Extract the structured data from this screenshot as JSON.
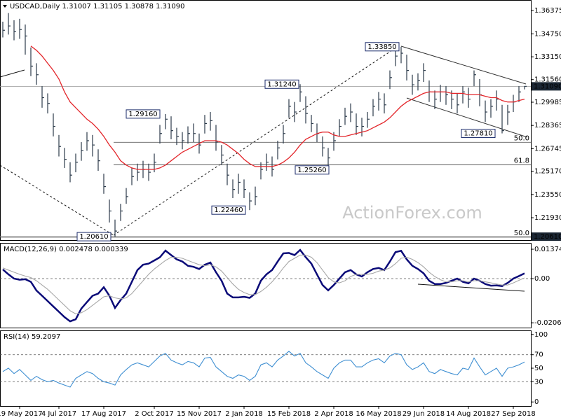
{
  "chart_data": [
    {
      "type": "ohlc",
      "title": "USDCAD,Daily  1.31007 1.31105 1.30878 1.31090",
      "watermark": "ActionForex.com",
      "color": "#2b3a4a",
      "categories": [
        null,
        null,
        null,
        "19 May 2017",
        null,
        null,
        null,
        null,
        null,
        null,
        "4 Jul 2017",
        null,
        null,
        null,
        null,
        null,
        null,
        null,
        "17 Aug 2017",
        null,
        null,
        null,
        null,
        null,
        null,
        null,
        null,
        "2 Oct 2017",
        null,
        null,
        null,
        null,
        null,
        null,
        null,
        "15 Nov 2017",
        null,
        null,
        null,
        null,
        null,
        null,
        null,
        "2 Jan 2018",
        null,
        null,
        null,
        null,
        null,
        null,
        null,
        "15 Feb 2018",
        null,
        null,
        null,
        null,
        null,
        null,
        null,
        "2 Apr 2018",
        null,
        null,
        null,
        null,
        null,
        null,
        null,
        "16 May 2018",
        null,
        null,
        null,
        null,
        null,
        null,
        null,
        "29 Jun 2018",
        null,
        null,
        null,
        null,
        null,
        null,
        null,
        "14 Aug 2018",
        null,
        null,
        null,
        null,
        null,
        null,
        null,
        "27 Sep 2018",
        null,
        null
      ],
      "high": [
        1.356,
        1.362,
        1.357,
        1.358,
        1.354,
        1.338,
        1.327,
        1.311,
        1.306,
        1.292,
        1.277,
        1.268,
        1.258,
        1.264,
        1.272,
        1.279,
        1.277,
        1.267,
        1.25,
        1.232,
        1.218,
        1.229,
        1.24,
        1.254,
        1.257,
        1.259,
        1.257,
        1.264,
        1.284,
        1.2916,
        1.29,
        1.282,
        1.279,
        1.283,
        1.285,
        1.278,
        1.291,
        1.293,
        1.284,
        1.27,
        1.257,
        1.246,
        1.25,
        1.246,
        1.237,
        1.241,
        1.258,
        1.264,
        1.262,
        1.273,
        1.284,
        1.302,
        1.3,
        1.3124,
        1.304,
        1.291,
        1.285,
        1.276,
        1.268,
        1.279,
        1.288,
        1.296,
        1.299,
        1.292,
        1.289,
        1.293,
        1.302,
        1.307,
        1.306,
        1.322,
        1.337,
        1.3385,
        1.333,
        1.319,
        1.32,
        1.327,
        1.315,
        1.308,
        1.312,
        1.311,
        1.308,
        1.306,
        1.311,
        1.31,
        1.322,
        1.316,
        1.301,
        1.302,
        1.308,
        1.298,
        1.298,
        1.305,
        1.311,
        1.31105
      ],
      "low": [
        1.345,
        1.347,
        1.343,
        1.344,
        1.333,
        1.318,
        1.312,
        1.296,
        1.292,
        1.276,
        1.262,
        1.254,
        1.244,
        1.251,
        1.259,
        1.266,
        1.262,
        1.252,
        1.236,
        1.216,
        1.2061,
        1.217,
        1.229,
        1.242,
        1.245,
        1.247,
        1.245,
        1.251,
        1.271,
        1.281,
        1.274,
        1.27,
        1.267,
        1.271,
        1.272,
        1.264,
        1.278,
        1.28,
        1.266,
        1.256,
        1.242,
        1.233,
        1.236,
        1.233,
        1.2246,
        1.228,
        1.246,
        1.252,
        1.248,
        1.26,
        1.271,
        1.289,
        1.286,
        1.3,
        1.285,
        1.279,
        1.272,
        1.262,
        1.2526,
        1.266,
        1.276,
        1.284,
        1.286,
        1.277,
        1.276,
        1.282,
        1.29,
        1.294,
        1.292,
        1.309,
        1.325,
        1.327,
        1.315,
        1.305,
        1.308,
        1.314,
        1.3,
        1.295,
        1.3,
        1.298,
        1.295,
        1.292,
        1.299,
        1.296,
        1.311,
        1.297,
        1.286,
        1.289,
        1.294,
        1.2781,
        1.284,
        1.293,
        1.3,
        1.30878
      ],
      "close": [
        1.35,
        1.353,
        1.349,
        1.3505,
        1.346,
        1.325,
        1.319,
        1.303,
        1.299,
        1.283,
        1.269,
        1.26,
        1.249,
        1.258,
        1.266,
        1.273,
        1.27,
        1.259,
        1.241,
        1.224,
        1.21,
        1.224,
        1.234,
        1.248,
        1.251,
        1.253,
        1.251,
        1.258,
        1.278,
        1.288,
        1.28,
        1.276,
        1.273,
        1.278,
        1.278,
        1.27,
        1.285,
        1.287,
        1.272,
        1.263,
        1.249,
        1.239,
        1.244,
        1.239,
        1.231,
        1.234,
        1.253,
        1.258,
        1.253,
        1.268,
        1.278,
        1.297,
        1.293,
        1.307,
        1.292,
        1.285,
        1.278,
        1.268,
        1.261,
        1.273,
        1.283,
        1.29,
        1.293,
        1.283,
        1.283,
        1.288,
        1.297,
        1.302,
        1.298,
        1.317,
        1.332,
        1.334,
        1.322,
        1.312,
        1.315,
        1.322,
        1.307,
        1.302,
        1.307,
        1.305,
        1.302,
        1.298,
        1.307,
        1.302,
        1.319,
        1.305,
        1.293,
        1.297,
        1.302,
        1.28,
        1.293,
        1.3,
        1.307,
        1.3109
      ],
      "ma": {
        "color": "#e3262b",
        "values": [
          null,
          null,
          null,
          null,
          null,
          1.339,
          1.336,
          1.332,
          1.327,
          1.322,
          1.316,
          1.307,
          1.3,
          1.296,
          1.292,
          1.288,
          1.285,
          1.281,
          1.276,
          1.27,
          1.265,
          1.259,
          1.256,
          1.254,
          1.253,
          1.253,
          1.253,
          1.253,
          1.254,
          1.256,
          1.259,
          1.262,
          1.265,
          1.267,
          1.269,
          1.271,
          1.273,
          1.273,
          1.273,
          1.272,
          1.27,
          1.267,
          1.264,
          1.26,
          1.257,
          1.255,
          1.255,
          1.255,
          1.255,
          1.256,
          1.258,
          1.261,
          1.265,
          1.27,
          1.274,
          1.276,
          1.278,
          1.279,
          1.279,
          1.277,
          1.276,
          1.276,
          1.277,
          1.278,
          1.279,
          1.28,
          1.282,
          1.284,
          1.286,
          1.289,
          1.293,
          1.297,
          1.3,
          1.302,
          1.304,
          1.306,
          1.307,
          1.307,
          1.307,
          1.307,
          1.306,
          1.306,
          1.306,
          1.305,
          1.305,
          1.305,
          1.304,
          1.303,
          1.303,
          1.301,
          1.3,
          1.3,
          1.301,
          1.302
        ]
      },
      "ylim": [
        1.2037,
        1.3711
      ],
      "yticks": [
        1.36375,
        {
          "value": 1.3475,
          "label": "1.34750"
        },
        {
          "value": 1.3315,
          "label": "1.33150"
        },
        {
          "value": 1.3156,
          "label": "1.31560"
        },
        1.29985,
        1.28365,
        1.26745,
        {
          "value": 1.2517,
          "label": "1.25170"
        },
        {
          "value": 1.2355,
          "label": "1.23550"
        },
        {
          "value": 1.2193,
          "label": "1.21930"
        }
      ],
      "annotations": [
        {
          "value": 1.3385,
          "label": "1.33850"
        },
        {
          "value": 1.3124,
          "label": "1.31240"
        },
        {
          "value": 1.2916,
          "label": "1.29160"
        },
        {
          "value": 1.2781,
          "label": "1.27810"
        },
        {
          "value": 1.2526,
          "label": "1.25260"
        },
        {
          "value": 1.2246,
          "label": "1.22460"
        },
        {
          "value": 1.2061,
          "label": "1.20610"
        }
      ],
      "levels": [
        {
          "value": 1.2719,
          "label": "50.0"
        },
        {
          "value": 1.2562,
          "label": "61.8"
        },
        {
          "value": 1.2057,
          "label": "50.0"
        }
      ],
      "price_tags": [
        {
          "value": 1.3109,
          "label": "1.31090"
        },
        {
          "value": 1.2061,
          "label": "1.20610"
        }
      ]
    },
    {
      "type": "line",
      "title": "MACD(12,26,9) 0.002478 0.000339",
      "series": [
        {
          "color": "#0a0a78",
          "values": [
            0.0043,
            0.002,
            0,
            -0.0005,
            -0.0003,
            -0.0015,
            -0.0056,
            -0.008,
            -0.0105,
            -0.013,
            -0.0155,
            -0.018,
            -0.02,
            -0.019,
            -0.014,
            -0.011,
            -0.008,
            -0.007,
            -0.004,
            -0.008,
            -0.0137,
            -0.01,
            -0.007,
            -0.0015,
            0.004,
            0.0065,
            0.007,
            0.0085,
            0.01,
            0.0131,
            0.011,
            0.009,
            0.008,
            0.006,
            0.0055,
            0.0045,
            0.0065,
            0.0075,
            0.003,
            -0.001,
            -0.007,
            -0.0088,
            -0.0088,
            -0.0085,
            -0.009,
            -0.007,
            -0.001,
            0.002,
            0.004,
            0.008,
            0.0118,
            0.012,
            0.011,
            0.0134,
            0.01,
            0.007,
            0.002,
            -0.003,
            -0.0055,
            -0.003,
            0,
            0.003,
            0.004,
            0.002,
            0.001,
            0.003,
            0.0045,
            0.005,
            0.004,
            0.008,
            0.0124,
            0.013,
            0.009,
            0.006,
            0.0045,
            0.0025,
            -0.001,
            -0.0025,
            -0.0025,
            -0.002,
            -0.001,
            0,
            -0.0015,
            -0.0022,
            0,
            -0.001,
            -0.0025,
            -0.0033,
            -0.0032,
            -0.0035,
            -0.002,
            0,
            0.0012,
            0.002478
          ]
        },
        {
          "color": "#a8a8a8",
          "values": [
            0.005,
            0.004,
            0.003,
            0.002,
            0.0012,
            0.0005,
            -0.001,
            -0.003,
            -0.005,
            -0.0075,
            -0.01,
            -0.0125,
            -0.015,
            -0.0165,
            -0.016,
            -0.0145,
            -0.0125,
            -0.0105,
            -0.0085,
            -0.008,
            -0.009,
            -0.0095,
            -0.009,
            -0.007,
            -0.004,
            -0.001,
            0.002,
            0.0045,
            0.0065,
            0.0085,
            0.01,
            0.01,
            0.0095,
            0.0085,
            0.0075,
            0.0065,
            0.006,
            0.0065,
            0.0055,
            0.0035,
            0.0005,
            -0.0025,
            -0.005,
            -0.0065,
            -0.0075,
            -0.0075,
            -0.006,
            -0.004,
            -0.0015,
            0.0015,
            0.005,
            0.008,
            0.0095,
            0.011,
            0.011,
            0.01,
            0.0075,
            0.004,
            0.0005,
            -0.0015,
            -0.002,
            -0.001,
            0.001,
            0.002,
            0.002,
            0.002,
            0.0025,
            0.0035,
            0.004,
            0.005,
            0.007,
            0.0095,
            0.01,
            0.009,
            0.0075,
            0.0055,
            0.003,
            0.001,
            -0.0005,
            -0.0015,
            -0.0015,
            -0.001,
            -0.001,
            -0.0015,
            -0.001,
            -0.001,
            -0.0015,
            -0.002,
            -0.0025,
            -0.003,
            -0.003,
            -0.002,
            -0.0008,
            0.000339
          ]
        }
      ],
      "ylim": [
        -0.0229,
        0.0167
      ],
      "yticks": [
        0.01374,
        {
          "value": 0,
          "label": "0.00"
        },
        -0.02065
      ],
      "levels": [
        0
      ]
    },
    {
      "type": "line",
      "title": "RSI(14) 59.2097",
      "series": [
        {
          "color": "#3f8fd2",
          "values": [
            45,
            50,
            42,
            48,
            40,
            32,
            38,
            33,
            30,
            32,
            28,
            25,
            22,
            35,
            40,
            45,
            42,
            35,
            30,
            28,
            25,
            40,
            48,
            55,
            58,
            55,
            52,
            60,
            68,
            72,
            62,
            58,
            55,
            60,
            58,
            52,
            65,
            66,
            52,
            45,
            38,
            35,
            40,
            38,
            32,
            38,
            55,
            58,
            52,
            62,
            68,
            75,
            68,
            72,
            58,
            52,
            45,
            40,
            35,
            50,
            58,
            62,
            62,
            52,
            52,
            58,
            62,
            64,
            58,
            68,
            72,
            70,
            55,
            48,
            52,
            58,
            45,
            42,
            48,
            45,
            42,
            40,
            50,
            48,
            65,
            52,
            40,
            45,
            50,
            38,
            50,
            52,
            55,
            59.2097
          ]
        }
      ],
      "ylim": [
        -6,
        106
      ],
      "yticks": [
        100,
        70,
        50,
        30,
        0
      ],
      "levels": [
        70,
        30
      ]
    }
  ]
}
